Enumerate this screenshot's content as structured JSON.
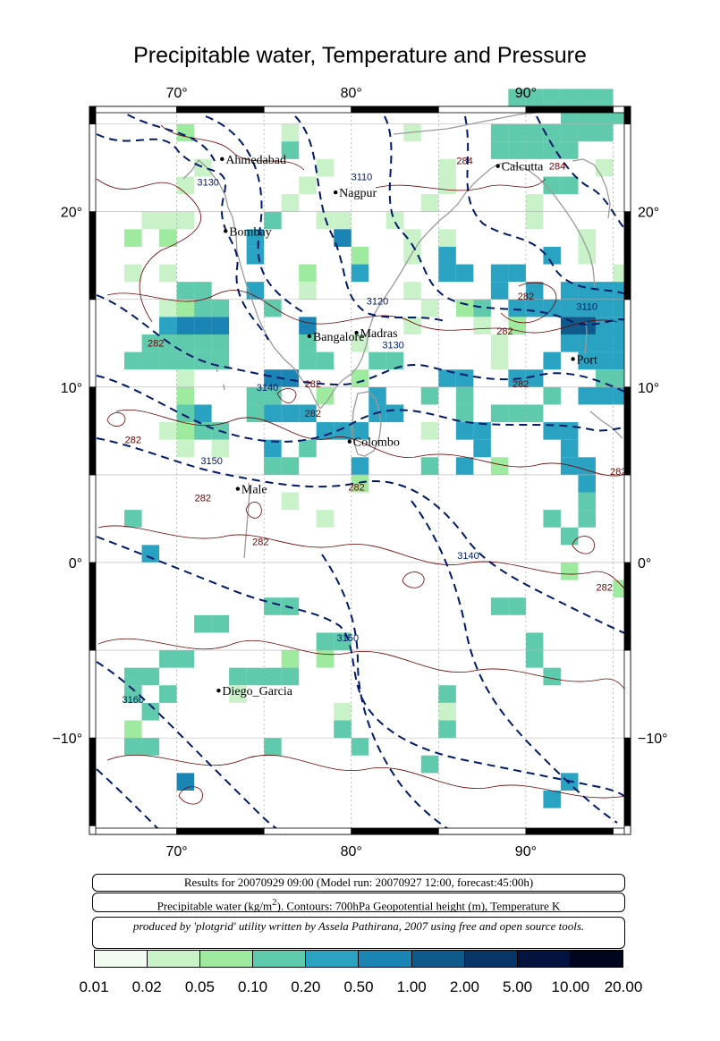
{
  "title": "Precipitable water, Temperature and Pressure",
  "axes": {
    "lon_ticks": [
      {
        "value": 70,
        "label": "70°"
      },
      {
        "value": 80,
        "label": "80°"
      },
      {
        "value": 90,
        "label": "90°"
      }
    ],
    "lat_ticks": [
      {
        "value": 20,
        "label": "20°"
      },
      {
        "value": 10,
        "label": "10°"
      },
      {
        "value": 0,
        "label": "0°"
      },
      {
        "value": -10,
        "label": "−10°"
      }
    ],
    "lon_range": [
      65,
      96
    ],
    "lat_range": [
      -15.5,
      26
    ]
  },
  "cities": [
    {
      "name": "Ahmedabad",
      "lon": 72.6,
      "lat": 23.0
    },
    {
      "name": "Nagpur",
      "lon": 79.1,
      "lat": 21.1
    },
    {
      "name": "Calcutta",
      "lon": 88.4,
      "lat": 22.6
    },
    {
      "name": "Bombay",
      "lon": 72.8,
      "lat": 18.9
    },
    {
      "name": "Madras",
      "lon": 80.3,
      "lat": 13.1
    },
    {
      "name": "Bangalore",
      "lon": 77.6,
      "lat": 12.9
    },
    {
      "name": "Port",
      "lon": 92.7,
      "lat": 11.6
    },
    {
      "name": "Colombo",
      "lon": 79.9,
      "lat": 6.9
    },
    {
      "name": "Male",
      "lon": 73.5,
      "lat": 4.2
    },
    {
      "name": "Diego_Garcia",
      "lon": 72.4,
      "lat": -7.3
    }
  ],
  "contour_labels": [
    {
      "text": "284",
      "lon": 86.5,
      "lat": 22.7
    },
    {
      "text": "284",
      "lon": 91.8,
      "lat": 22.4
    },
    {
      "text": "282",
      "lon": 90.0,
      "lat": 15.0
    },
    {
      "text": "282",
      "lon": 88.8,
      "lat": 13.0
    },
    {
      "text": "282",
      "lon": 68.8,
      "lat": 12.3
    },
    {
      "text": "282",
      "lon": 74.8,
      "lat": 1.0
    },
    {
      "text": "282",
      "lon": 77.8,
      "lat": 10.0
    },
    {
      "text": "282",
      "lon": 77.8,
      "lat": 8.3
    },
    {
      "text": "282",
      "lon": 67.5,
      "lat": 6.8
    },
    {
      "text": "282",
      "lon": 71.5,
      "lat": 3.5
    },
    {
      "text": "282",
      "lon": 80.3,
      "lat": 4.1
    },
    {
      "text": "282",
      "lon": 89.7,
      "lat": 10.0
    },
    {
      "text": "282",
      "lon": 95.3,
      "lat": 5.0
    },
    {
      "text": "282",
      "lon": 94.5,
      "lat": -1.6
    },
    {
      "text": "3130",
      "lon": 71.8,
      "lat": 21.5
    },
    {
      "text": "3110",
      "lon": 80.6,
      "lat": 21.8
    },
    {
      "text": "3120",
      "lon": 81.5,
      "lat": 14.7
    },
    {
      "text": "3130",
      "lon": 82.4,
      "lat": 12.2
    },
    {
      "text": "3110",
      "lon": 93.5,
      "lat": 14.4
    },
    {
      "text": "3140",
      "lon": 75.2,
      "lat": 9.8
    },
    {
      "text": "3150",
      "lon": 72.0,
      "lat": 5.6
    },
    {
      "text": "3140",
      "lon": 86.7,
      "lat": 0.2
    },
    {
      "text": "3150",
      "lon": 79.8,
      "lat": -4.5
    },
    {
      "text": "3160",
      "lon": 67.5,
      "lat": -8.0
    }
  ],
  "captions": {
    "line1": "Results for 20070929 09:00 (Model run: 20070927 12:00, forecast:45:00h)",
    "line2_a": "Precipitable water (kg/m",
    "line2_sup": "2",
    "line2_b": ").  Contours: 700hPa Geopotential height (m), Temperature K",
    "line3": "produced by 'plotgrid' utility written by Assela Pathirana, 2007 using free and open source tools."
  },
  "colorbar": {
    "colors": [
      "#f1fbef",
      "#c9f2c9",
      "#9eeba0",
      "#5fcbac",
      "#2aa3c2",
      "#1a84b4",
      "#0e5a8a",
      "#063566",
      "#021340",
      "#01061f",
      "#000510"
    ],
    "labels": [
      "0.01",
      "0.02",
      "0.05",
      "0.10",
      "0.20",
      "0.50",
      "1.00",
      "2.00",
      "5.00",
      "10.00",
      "20.00"
    ]
  },
  "grid": {
    "lon0": 65,
    "lat0": -15,
    "cell_deg": 1,
    "note_codes": ".=none 1..7 = colorbar class index",
    "rows": [
      "........................333333.",
      "...........................33333",
      ".....2.....1......1....3333333.",
      "...........3...........33333...",
      "......1......1......1........1.",
      ".....1......1.......1.....33...",
      "...........1.......1.....1.....",
      "...111....3..11..1.......1.....",
      "..2.2....4....5...1.1.......1..",
      ".........4.....2..1.4.....4.1..",
      "..1.1.......2..4....44.44.....1",
      ".....33..4..1.....1....4.4.4444",
      "....1233..3........1.23.4444444",
      "....4555....5.....1...1.2..6644",
      "...33333....3..1.......1...4444",
      "..333333....33..33.....1..4.444",
      ".....1....55...2....44..44...33",
      ".....2...33..2..4..3.3....3.444",
      ".....34..3444...44...3.333.....",
      "....1233.....444...1.44...44...",
      ".....1.1..4.3.........4....4...",
      "..........33...4...3.4.2...44..",
      "...............2............4...",
      "...........1................3..",
      "..3..........1............3.3..",
      "...........................3...",
      "...4...........................",
      "...........................2...",
      "..............................2",
      "..........33...........33......",
      "......33.......................",
      ".............33..........3.....",
      "....33.....2.2...........3.....",
      "..33....3333..............3....",
      "..3.3...1...........3..........",
      "...3..........1.....1..........",
      "..2...........3.....3..........",
      "..33......3....3...............",
      "...................3...........",
      ".....5.....................4...",
      "..........................4....",
      "..............................."
    ]
  }
}
